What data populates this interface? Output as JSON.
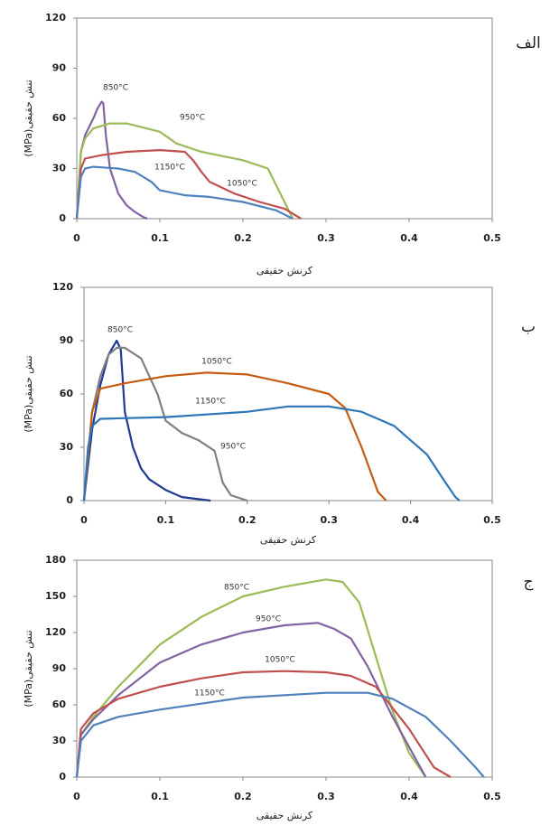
{
  "chart_data": [
    {
      "type": "line",
      "panel_label": "الف",
      "xlabel": "کرنش حقیقی",
      "ylabel": "تنش حقیقی(MPa)",
      "xlim": [
        0,
        0.5
      ],
      "ylim": [
        0,
        120
      ],
      "xticks": [
        0,
        0.1,
        0.2,
        0.3,
        0.4,
        0.5
      ],
      "yticks": [
        0,
        30,
        60,
        90,
        120
      ],
      "series": [
        {
          "name": "850°C",
          "color": "#8064a2",
          "x": [
            0,
            0.005,
            0.01,
            0.02,
            0.025,
            0.03,
            0.032,
            0.035,
            0.04,
            0.05,
            0.06,
            0.07,
            0.08,
            0.085
          ],
          "values": [
            0,
            40,
            50,
            60,
            66,
            70,
            69,
            50,
            30,
            15,
            8,
            4,
            1,
            0
          ]
        },
        {
          "name": "950°C",
          "color": "#9bbb59",
          "x": [
            0,
            0.005,
            0.01,
            0.02,
            0.04,
            0.06,
            0.1,
            0.12,
            0.15,
            0.2,
            0.23,
            0.24,
            0.25,
            0.26
          ],
          "values": [
            0,
            40,
            48,
            54,
            57,
            57,
            52,
            45,
            40,
            35,
            30,
            20,
            10,
            0
          ]
        },
        {
          "name": "1050°C",
          "color": "#c0504d",
          "x": [
            0,
            0.005,
            0.01,
            0.03,
            0.06,
            0.1,
            0.13,
            0.14,
            0.15,
            0.16,
            0.19,
            0.22,
            0.25,
            0.27
          ],
          "values": [
            0,
            30,
            36,
            38,
            40,
            41,
            40,
            35,
            28,
            22,
            15,
            10,
            6,
            0
          ]
        },
        {
          "name": "1150°C",
          "color": "#4f81bd",
          "x": [
            0,
            0.005,
            0.01,
            0.02,
            0.05,
            0.07,
            0.09,
            0.1,
            0.13,
            0.16,
            0.2,
            0.24,
            0.26
          ],
          "values": [
            0,
            25,
            30,
            31,
            30,
            28,
            22,
            17,
            14,
            13,
            10,
            5,
            0
          ]
        }
      ]
    },
    {
      "type": "line",
      "panel_label": "ب",
      "xlabel": "کرنش حقیقی",
      "ylabel": "تنش حقیقی(MPa)",
      "xlim": [
        0,
        0.5
      ],
      "ylim": [
        0,
        120
      ],
      "xticks": [
        0,
        0.1,
        0.2,
        0.3,
        0.4,
        0.5
      ],
      "yticks": [
        0,
        30,
        60,
        90,
        120
      ],
      "series": [
        {
          "name": "850°C",
          "color": "#1f3a93",
          "x": [
            0,
            0.01,
            0.02,
            0.03,
            0.04,
            0.045,
            0.05,
            0.06,
            0.07,
            0.08,
            0.1,
            0.12,
            0.155
          ],
          "values": [
            0,
            40,
            65,
            82,
            90,
            85,
            50,
            30,
            18,
            12,
            6,
            2,
            0
          ]
        },
        {
          "name": "950°C",
          "color": "#808080",
          "x": [
            0,
            0.01,
            0.02,
            0.03,
            0.04,
            0.05,
            0.07,
            0.09,
            0.1,
            0.12,
            0.14,
            0.16,
            0.17,
            0.18,
            0.2
          ],
          "values": [
            0,
            50,
            70,
            82,
            86,
            86,
            80,
            60,
            45,
            38,
            34,
            28,
            10,
            3,
            0
          ]
        },
        {
          "name": "1050°C",
          "color": "#c55a11",
          "x": [
            0,
            0.01,
            0.02,
            0.05,
            0.1,
            0.15,
            0.2,
            0.25,
            0.3,
            0.32,
            0.34,
            0.36,
            0.37
          ],
          "values": [
            0,
            50,
            63,
            66,
            70,
            72,
            71,
            66,
            60,
            52,
            30,
            5,
            0
          ]
        },
        {
          "name": "1150°C",
          "color": "#2e75b6",
          "x": [
            0,
            0.005,
            0.01,
            0.02,
            0.1,
            0.2,
            0.25,
            0.3,
            0.34,
            0.38,
            0.42,
            0.44,
            0.455,
            0.46
          ],
          "values": [
            0,
            30,
            42,
            46,
            47,
            50,
            53,
            53,
            50,
            42,
            26,
            12,
            2,
            0
          ]
        }
      ]
    },
    {
      "type": "line",
      "panel_label": "ج",
      "xlabel": "کرنش حقیقی",
      "ylabel": "تنش حقیقی(MPa)",
      "xlim": [
        0,
        0.5
      ],
      "ylim": [
        0,
        180
      ],
      "xticks": [
        0,
        0.1,
        0.2,
        0.3,
        0.4,
        0.5
      ],
      "yticks": [
        0,
        30,
        60,
        90,
        120,
        150,
        180
      ],
      "series": [
        {
          "name": "850°C",
          "color": "#9bbb59",
          "x": [
            0,
            0.005,
            0.02,
            0.05,
            0.1,
            0.15,
            0.2,
            0.25,
            0.3,
            0.32,
            0.34,
            0.36,
            0.38,
            0.4,
            0.42
          ],
          "values": [
            0,
            35,
            50,
            75,
            110,
            133,
            150,
            158,
            164,
            162,
            145,
            100,
            55,
            20,
            0
          ]
        },
        {
          "name": "950°C",
          "color": "#8064a2",
          "x": [
            0,
            0.005,
            0.02,
            0.05,
            0.1,
            0.15,
            0.2,
            0.25,
            0.29,
            0.31,
            0.33,
            0.35,
            0.38,
            0.42
          ],
          "values": [
            0,
            35,
            48,
            68,
            95,
            110,
            120,
            126,
            128,
            123,
            115,
            92,
            50,
            0
          ]
        },
        {
          "name": "1050°C",
          "color": "#c0504d",
          "x": [
            0,
            0.005,
            0.02,
            0.05,
            0.1,
            0.15,
            0.2,
            0.25,
            0.3,
            0.33,
            0.36,
            0.4,
            0.43,
            0.45
          ],
          "values": [
            0,
            40,
            53,
            65,
            75,
            82,
            87,
            88,
            87,
            84,
            75,
            40,
            8,
            0
          ]
        },
        {
          "name": "1150°C",
          "color": "#4f81bd",
          "x": [
            0,
            0.005,
            0.02,
            0.05,
            0.1,
            0.15,
            0.2,
            0.3,
            0.35,
            0.38,
            0.42,
            0.45,
            0.48,
            0.49
          ],
          "values": [
            0,
            30,
            43,
            50,
            56,
            61,
            66,
            70,
            70,
            65,
            50,
            30,
            8,
            0
          ]
        }
      ]
    }
  ]
}
